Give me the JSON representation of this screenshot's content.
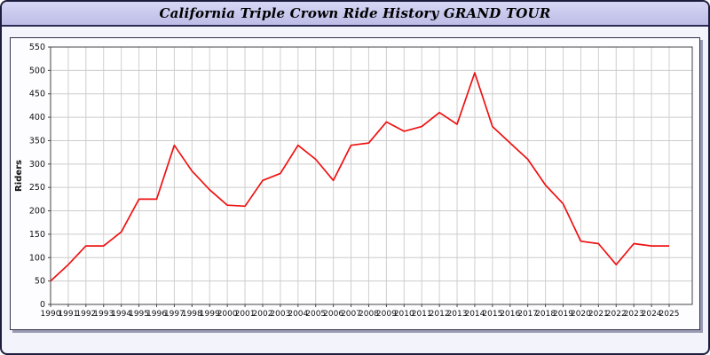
{
  "window": {
    "title": "California Triple Crown Ride History GRAND TOUR"
  },
  "chart_data": {
    "type": "line",
    "title": "California Triple Crown Ride History GRAND TOUR",
    "xlabel": "",
    "ylabel": "Riders",
    "ylim": [
      0,
      550
    ],
    "ytick_step": 50,
    "grid": true,
    "legend": "none",
    "line_color": "#ee1111",
    "x": [
      1990,
      1991,
      1992,
      1993,
      1994,
      1995,
      1996,
      1997,
      1998,
      1999,
      2000,
      2001,
      2002,
      2003,
      2004,
      2005,
      2006,
      2007,
      2008,
      2009,
      2010,
      2011,
      2012,
      2013,
      2014,
      2015,
      2016,
      2017,
      2018,
      2019,
      2020,
      2021,
      2022,
      2023,
      2024,
      2025
    ],
    "values": [
      50,
      85,
      125,
      125,
      155,
      225,
      225,
      340,
      285,
      245,
      212,
      210,
      265,
      280,
      340,
      310,
      265,
      340,
      345,
      390,
      370,
      380,
      410,
      385,
      495,
      380,
      345,
      310,
      255,
      215,
      135,
      130,
      85,
      130,
      125,
      125
    ]
  }
}
